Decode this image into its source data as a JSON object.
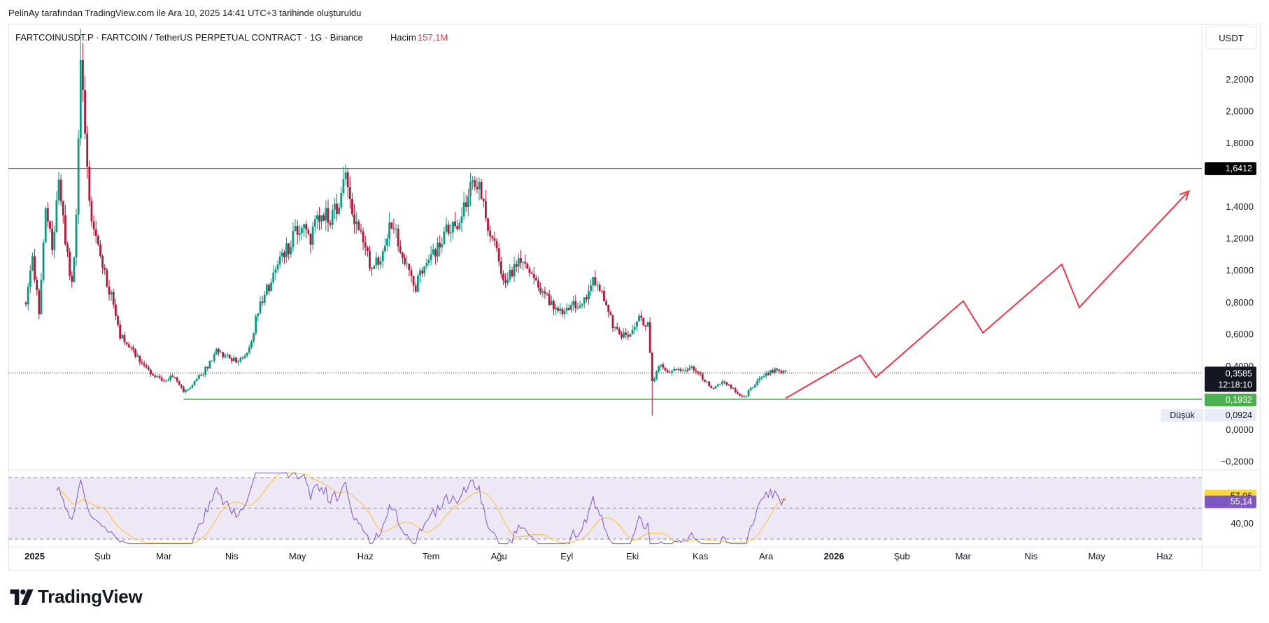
{
  "header": {
    "caption": "PelinAy tarafından TradingView.com ile Ara 10, 2025 14:41 UTC+3 tarihinde oluşturuldu"
  },
  "symbol_bar": {
    "title": "FARTCOINUSDT.P · FARTCOIN / TetherUS PERPETUAL CONTRACT · 1G · Binance",
    "volume_label": "Hacim",
    "volume_value": "157,1M",
    "volume_color": "#f23645"
  },
  "currency_button": "USDT",
  "logo": {
    "text": "TradingView",
    "icon": "tradingview-logo-icon"
  },
  "colors": {
    "up": "#089981",
    "down": "#b2183a",
    "resistance": "#000000",
    "support": "#4caf50",
    "projection": "#f23645",
    "rsi_line": "#7e57c2",
    "rsi_ma": "#fbc02d",
    "rsi_band": "#ede7f6"
  },
  "chart_data": {
    "type": "candlestick",
    "title": "FARTCOINUSDT.P · FARTCOIN / TetherUS PERPETUAL CONTRACT · 1G · Binance",
    "ylim": [
      -0.25,
      2.55
    ],
    "y_ticks": [
      "2,2000",
      "2,0000",
      "1,8000",
      "1,4000",
      "1,2000",
      "1,0000",
      "0,8000",
      "0,6000",
      "0,4000",
      "0,0000",
      "−0,2000"
    ],
    "y_tick_values": [
      2.2,
      2.0,
      1.8,
      1.4,
      1.2,
      1.0,
      0.8,
      0.6,
      0.4,
      0.0,
      -0.2
    ],
    "x_ticks": [
      "2025",
      "Şub",
      "Mar",
      "Nis",
      "May",
      "Haz",
      "Tem",
      "Ağu",
      "Eyl",
      "Eki",
      "Kas",
      "Ara",
      "2026",
      "Şub",
      "Mar",
      "Nis",
      "May",
      "Haz"
    ],
    "x_tick_dates": [
      "2025-01-01",
      "2025-02-01",
      "2025-03-01",
      "2025-04-01",
      "2025-05-01",
      "2025-06-01",
      "2025-07-01",
      "2025-08-01",
      "2025-09-01",
      "2025-10-01",
      "2025-11-01",
      "2025-12-01",
      "2026-01-01",
      "2026-02-01",
      "2026-03-01",
      "2026-04-01",
      "2026-05-01",
      "2026-06-01"
    ],
    "date_range": [
      "2024-12-20",
      "2026-06-18"
    ],
    "price_path": [
      [
        "2024-12-28",
        0.8
      ],
      [
        "2024-12-31",
        1.05
      ],
      [
        "2025-01-03",
        0.75
      ],
      [
        "2025-01-06",
        1.4
      ],
      [
        "2025-01-09",
        1.15
      ],
      [
        "2025-01-12",
        1.55
      ],
      [
        "2025-01-15",
        1.2
      ],
      [
        "2025-01-18",
        0.9
      ],
      [
        "2025-01-20",
        1.3
      ],
      [
        "2025-01-22",
        2.3
      ],
      [
        "2025-01-25",
        1.6
      ],
      [
        "2025-01-28",
        1.25
      ],
      [
        "2025-02-01",
        1.0
      ],
      [
        "2025-02-05",
        0.85
      ],
      [
        "2025-02-09",
        0.6
      ],
      [
        "2025-02-13",
        0.52
      ],
      [
        "2025-02-17",
        0.45
      ],
      [
        "2025-02-21",
        0.38
      ],
      [
        "2025-02-25",
        0.33
      ],
      [
        "2025-03-01",
        0.3
      ],
      [
        "2025-03-05",
        0.34
      ],
      [
        "2025-03-10",
        0.24
      ],
      [
        "2025-03-15",
        0.3
      ],
      [
        "2025-03-20",
        0.38
      ],
      [
        "2025-03-25",
        0.5
      ],
      [
        "2025-03-30",
        0.46
      ],
      [
        "2025-04-04",
        0.42
      ],
      [
        "2025-04-09",
        0.52
      ],
      [
        "2025-04-14",
        0.8
      ],
      [
        "2025-04-18",
        0.9
      ],
      [
        "2025-04-22",
        1.05
      ],
      [
        "2025-04-27",
        1.15
      ],
      [
        "2025-05-02",
        1.28
      ],
      [
        "2025-05-07",
        1.2
      ],
      [
        "2025-05-12",
        1.4
      ],
      [
        "2025-05-16",
        1.3
      ],
      [
        "2025-05-20",
        1.45
      ],
      [
        "2025-05-23",
        1.55
      ],
      [
        "2025-05-27",
        1.35
      ],
      [
        "2025-05-31",
        1.2
      ],
      [
        "2025-06-04",
        1.0
      ],
      [
        "2025-06-08",
        1.08
      ],
      [
        "2025-06-12",
        1.3
      ],
      [
        "2025-06-16",
        1.2
      ],
      [
        "2025-06-20",
        1.05
      ],
      [
        "2025-06-24",
        0.9
      ],
      [
        "2025-06-28",
        1.05
      ],
      [
        "2025-07-03",
        1.1
      ],
      [
        "2025-07-08",
        1.25
      ],
      [
        "2025-07-13",
        1.3
      ],
      [
        "2025-07-17",
        1.45
      ],
      [
        "2025-07-21",
        1.55
      ],
      [
        "2025-07-23",
        1.6
      ],
      [
        "2025-07-26",
        1.3
      ],
      [
        "2025-07-30",
        1.15
      ],
      [
        "2025-08-03",
        0.95
      ],
      [
        "2025-08-07",
        1.0
      ],
      [
        "2025-08-11",
        1.08
      ],
      [
        "2025-08-15",
        0.95
      ],
      [
        "2025-08-20",
        0.9
      ],
      [
        "2025-08-25",
        0.8
      ],
      [
        "2025-08-30",
        0.75
      ],
      [
        "2025-09-04",
        0.78
      ],
      [
        "2025-09-09",
        0.82
      ],
      [
        "2025-09-13",
        0.92
      ],
      [
        "2025-09-17",
        0.88
      ],
      [
        "2025-09-21",
        0.7
      ],
      [
        "2025-09-25",
        0.58
      ],
      [
        "2025-09-30",
        0.62
      ],
      [
        "2025-10-04",
        0.7
      ],
      [
        "2025-10-08",
        0.65
      ],
      [
        "2025-10-10",
        0.3
      ],
      [
        "2025-10-14",
        0.42
      ],
      [
        "2025-10-18",
        0.36
      ],
      [
        "2025-10-23",
        0.38
      ],
      [
        "2025-10-28",
        0.4
      ],
      [
        "2025-11-02",
        0.32
      ],
      [
        "2025-11-07",
        0.26
      ],
      [
        "2025-11-12",
        0.3
      ],
      [
        "2025-11-17",
        0.24
      ],
      [
        "2025-11-21",
        0.2
      ],
      [
        "2025-11-25",
        0.28
      ],
      [
        "2025-11-29",
        0.33
      ],
      [
        "2025-12-03",
        0.36
      ],
      [
        "2025-12-07",
        0.38
      ],
      [
        "2025-12-10",
        0.3585
      ]
    ],
    "wicks": [
      {
        "date": "2025-01-22",
        "high": 2.52
      },
      {
        "date": "2025-10-10",
        "low": 0.09
      }
    ],
    "levels": [
      {
        "name": "resistance",
        "value": 1.6412,
        "label": "1,6412"
      },
      {
        "name": "support",
        "value": 0.1932,
        "label": "0,1932"
      },
      {
        "name": "last_price",
        "value": 0.3585,
        "label": "0,3585",
        "countdown": "12:18:10"
      }
    ],
    "low_marker": {
      "label": "Düşük",
      "value": 0.0924,
      "text": "0,0924"
    },
    "projection_path": [
      [
        "2025-12-10",
        0.2
      ],
      [
        "2026-01-13",
        0.47
      ],
      [
        "2026-01-20",
        0.33
      ],
      [
        "2026-03-01",
        0.81
      ],
      [
        "2026-03-10",
        0.61
      ],
      [
        "2026-04-15",
        1.04
      ],
      [
        "2026-04-23",
        0.77
      ],
      [
        "2026-06-12",
        1.5
      ]
    ],
    "rsi": {
      "ylim": [
        25,
        75
      ],
      "tick": "40,00",
      "value": 55.14,
      "value_label": "55,14",
      "ma_value": 57.06,
      "ma_label": "57,06",
      "band": [
        30,
        70
      ],
      "mid": 50
    }
  }
}
